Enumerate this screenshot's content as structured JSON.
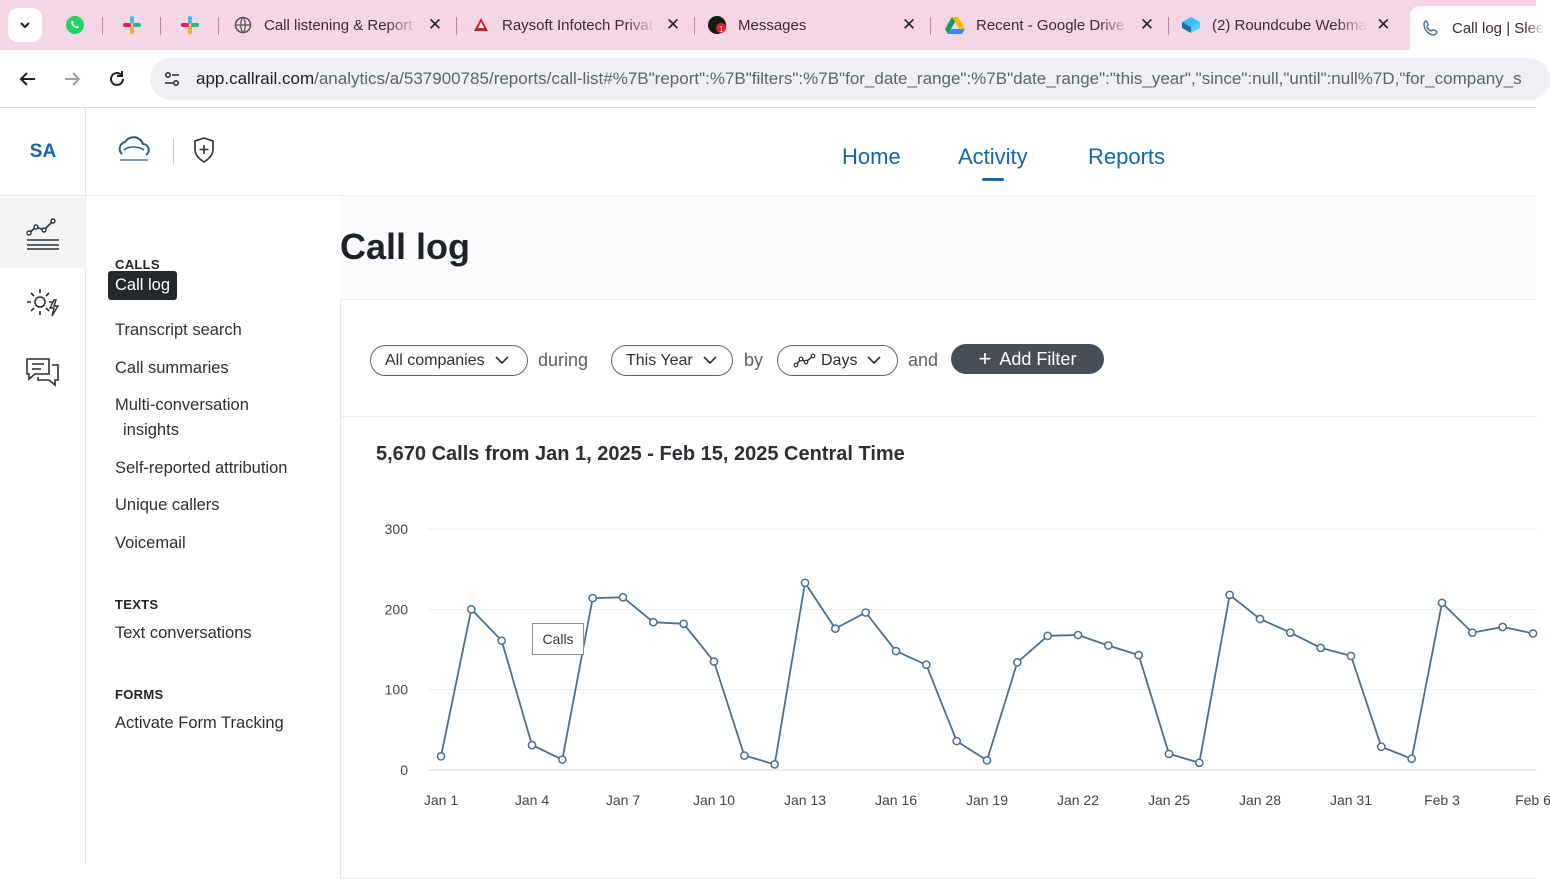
{
  "browser": {
    "tabs": [
      {
        "title": "Call listening & Report",
        "icon": "globe-icon"
      },
      {
        "title": "Raysoft Infotech Privat",
        "icon": "raysoft-icon"
      },
      {
        "title": "Messages",
        "icon": "messages-icon"
      },
      {
        "title": "Recent - Google Drive",
        "icon": "drive-icon"
      },
      {
        "title": "(2) Roundcube Webma",
        "icon": "roundcube-icon"
      },
      {
        "title": "Call log | Slee",
        "icon": "phone-icon"
      }
    ],
    "pinned": [
      "whatsapp-icon",
      "slack-icon",
      "slack-icon"
    ],
    "url_host": "app.callrail.com",
    "url_path": "/analytics/a/537900785/reports/call-list#%7B\"report\":%7B\"filters\":%7B\"for_date_range\":%7B\"date_range\":\"this_year\",\"since\":null,\"until\":null%7D,\"for_company_s"
  },
  "rail": {
    "account": "SA"
  },
  "topnav": {
    "home": "Home",
    "activity": "Activity",
    "reports": "Reports"
  },
  "subnav": {
    "calls_heading": "CALLS",
    "call_log": "Call log",
    "transcript_search": "Transcript search",
    "call_summaries": "Call summaries",
    "multi_line1": "Multi-conversation",
    "multi_line2": "insights",
    "self_reported": "Self-reported attribution",
    "unique_callers": "Unique callers",
    "voicemail": "Voicemail",
    "texts_heading": "TEXTS",
    "text_conversations": "Text conversations",
    "forms_heading": "FORMS",
    "activate_form": "Activate Form Tracking"
  },
  "main": {
    "title": "Call log",
    "filters": {
      "company": "All companies",
      "during": "during",
      "range": "This Year",
      "by": "by",
      "granularity": "Days",
      "and": "and",
      "add_filter": "Add Filter"
    },
    "chart_heading": "5,670 Calls from Jan 1, 2025 - Feb 15, 2025 Central Time",
    "tooltip": "Calls"
  },
  "chart_data": {
    "type": "line",
    "title": "5,670 Calls from Jan 1, 2025 - Feb 15, 2025 Central Time",
    "xlabel": "",
    "ylabel": "",
    "ylim": [
      0,
      300
    ],
    "yticks": [
      0,
      100,
      200,
      300
    ],
    "grid": true,
    "color": "#4a6f8f",
    "x": [
      "Jan 1",
      "Jan 2",
      "Jan 3",
      "Jan 4",
      "Jan 5",
      "Jan 6",
      "Jan 7",
      "Jan 8",
      "Jan 9",
      "Jan 10",
      "Jan 11",
      "Jan 12",
      "Jan 13",
      "Jan 14",
      "Jan 15",
      "Jan 16",
      "Jan 17",
      "Jan 18",
      "Jan 19",
      "Jan 20",
      "Jan 21",
      "Jan 22",
      "Jan 23",
      "Jan 24",
      "Jan 25",
      "Jan 26",
      "Jan 27",
      "Jan 28",
      "Jan 29",
      "Jan 30",
      "Jan 31",
      "Feb 1",
      "Feb 2",
      "Feb 3",
      "Feb 4",
      "Feb 5",
      "Feb 6"
    ],
    "xtick_labels": [
      "Jan 1",
      "Jan 4",
      "Jan 7",
      "Jan 10",
      "Jan 13",
      "Jan 16",
      "Jan 19",
      "Jan 22",
      "Jan 25",
      "Jan 28",
      "Jan 31",
      "Feb 3",
      "Feb 6"
    ],
    "series": [
      {
        "values": [
          17,
          200,
          161,
          31,
          13,
          214,
          215,
          184,
          182,
          135,
          18,
          7,
          233,
          176,
          196,
          148,
          131,
          36,
          12,
          134,
          167,
          168,
          155,
          143,
          20,
          9,
          218,
          188,
          171,
          152,
          142,
          29,
          14,
          208,
          171,
          178,
          170
        ]
      }
    ]
  }
}
